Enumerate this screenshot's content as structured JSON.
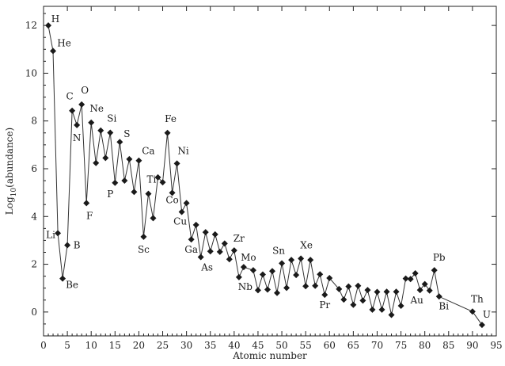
{
  "chart_data": {
    "type": "line",
    "title": "",
    "xlabel": "Atomic number",
    "ylabel_parts": {
      "base": "Log",
      "sub": "10",
      "rest": "(abundance)"
    },
    "xlim": [
      0,
      95
    ],
    "ylim": [
      -1,
      12.8
    ],
    "xticks": [
      0,
      5,
      10,
      15,
      20,
      25,
      30,
      35,
      40,
      45,
      50,
      55,
      60,
      65,
      70,
      75,
      80,
      85,
      90,
      95
    ],
    "yticks": [
      0,
      2,
      4,
      6,
      8,
      10,
      12
    ],
    "grid": false,
    "legend": "none",
    "series": [
      {
        "x": [
          1,
          2,
          3,
          4,
          5,
          6,
          7,
          8,
          9,
          10,
          11,
          12,
          13,
          14,
          15,
          16,
          17,
          18,
          19,
          20,
          21,
          22,
          23,
          24,
          25,
          26,
          27,
          28,
          29,
          30,
          31,
          32,
          33,
          34,
          35,
          36,
          37,
          38,
          39,
          40,
          41,
          42,
          44,
          45,
          46,
          47,
          48,
          49,
          50,
          51,
          52,
          53,
          54,
          55,
          56,
          57,
          58,
          59,
          60,
          62,
          63,
          64,
          65,
          66,
          67,
          68,
          69,
          70,
          71,
          72,
          73,
          74,
          75,
          76,
          77,
          78,
          79,
          80,
          81,
          82,
          83,
          90,
          92
        ],
        "y": [
          12.0,
          10.93,
          3.3,
          1.4,
          2.8,
          8.43,
          7.83,
          8.69,
          4.56,
          7.93,
          6.24,
          7.6,
          6.45,
          7.51,
          5.41,
          7.12,
          5.5,
          6.4,
          5.03,
          6.34,
          3.15,
          4.95,
          3.93,
          5.64,
          5.43,
          7.5,
          4.99,
          6.22,
          4.19,
          4.56,
          3.04,
          3.65,
          2.3,
          3.34,
          2.54,
          3.25,
          2.52,
          2.87,
          2.21,
          2.58,
          1.46,
          1.88,
          1.75,
          0.91,
          1.57,
          0.94,
          1.71,
          0.8,
          2.04,
          1.01,
          2.18,
          1.55,
          2.24,
          1.08,
          2.18,
          1.1,
          1.58,
          0.72,
          1.42,
          0.96,
          0.52,
          1.07,
          0.3,
          1.1,
          0.48,
          0.92,
          0.1,
          0.84,
          0.1,
          0.85,
          -0.12,
          0.85,
          0.26,
          1.4,
          1.38,
          1.62,
          0.92,
          1.17,
          0.9,
          1.75,
          0.65,
          0.02,
          -0.54
        ]
      }
    ],
    "labels": [
      {
        "text": "H",
        "x": 1,
        "y": 12.0
      },
      {
        "text": "He",
        "x": 2,
        "y": 10.93
      },
      {
        "text": "Li",
        "x": 3,
        "y": 3.3
      },
      {
        "text": "Be",
        "x": 4,
        "y": 1.4
      },
      {
        "text": "B",
        "x": 5,
        "y": 2.8
      },
      {
        "text": "C",
        "x": 6,
        "y": 8.43
      },
      {
        "text": "N",
        "x": 7,
        "y": 7.83
      },
      {
        "text": "O",
        "x": 8,
        "y": 8.69
      },
      {
        "text": "F",
        "x": 9,
        "y": 4.56
      },
      {
        "text": "Ne",
        "x": 10,
        "y": 7.93
      },
      {
        "text": "Si",
        "x": 14,
        "y": 7.51
      },
      {
        "text": "P",
        "x": 15,
        "y": 5.41
      },
      {
        "text": "S",
        "x": 16,
        "y": 7.12
      },
      {
        "text": "Ca",
        "x": 20,
        "y": 6.34
      },
      {
        "text": "Sc",
        "x": 21,
        "y": 3.15
      },
      {
        "text": "Ti",
        "x": 22,
        "y": 4.95
      },
      {
        "text": "Fe",
        "x": 26,
        "y": 7.5
      },
      {
        "text": "Co",
        "x": 27,
        "y": 4.99
      },
      {
        "text": "Ni",
        "x": 28,
        "y": 6.22
      },
      {
        "text": "Cu",
        "x": 29,
        "y": 4.19
      },
      {
        "text": "Ga",
        "x": 31,
        "y": 3.04
      },
      {
        "text": "As",
        "x": 33,
        "y": 2.3
      },
      {
        "text": "Zr",
        "x": 40,
        "y": 2.58
      },
      {
        "text": "Nb",
        "x": 41,
        "y": 1.46
      },
      {
        "text": "Mo",
        "x": 42,
        "y": 1.88
      },
      {
        "text": "Sn",
        "x": 50,
        "y": 2.04
      },
      {
        "text": "Xe",
        "x": 54,
        "y": 2.24
      },
      {
        "text": "Pr",
        "x": 59,
        "y": 0.72
      },
      {
        "text": "Au",
        "x": 79,
        "y": 0.92
      },
      {
        "text": "Pb",
        "x": 82,
        "y": 1.75
      },
      {
        "text": "Bi",
        "x": 83,
        "y": 0.65
      },
      {
        "text": "Th",
        "x": 90,
        "y": 0.02
      },
      {
        "text": "U",
        "x": 92,
        "y": -0.54
      }
    ]
  }
}
